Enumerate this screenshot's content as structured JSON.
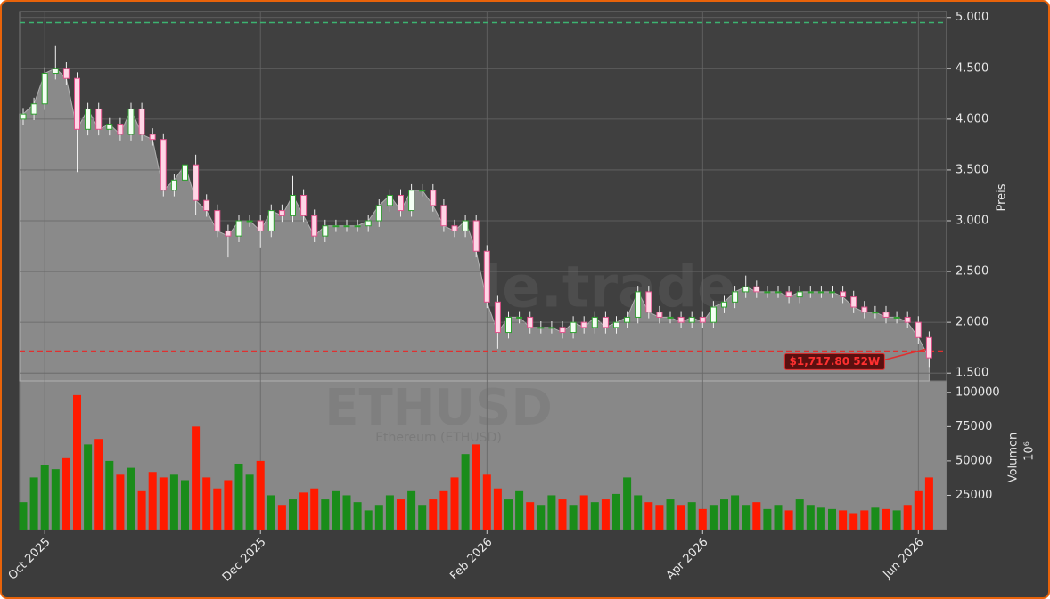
{
  "chart_data": {
    "type": "candlestick",
    "watermark": "forexsignale.trade",
    "symbol": "ETHUSD",
    "subtitle": "Ethereum (ETHUSD)",
    "categories": [
      null,
      null,
      "Oct 2025",
      null,
      null,
      null,
      null,
      null,
      null,
      null,
      null,
      null,
      null,
      null,
      null,
      null,
      null,
      null,
      null,
      null,
      null,
      null,
      "Dec 2025",
      null,
      null,
      null,
      null,
      null,
      null,
      null,
      null,
      null,
      null,
      null,
      null,
      null,
      null,
      null,
      null,
      null,
      null,
      null,
      null,
      "Feb 2026",
      null,
      null,
      null,
      null,
      null,
      null,
      null,
      null,
      null,
      null,
      null,
      null,
      null,
      null,
      null,
      null,
      null,
      null,
      null,
      "Apr 2026",
      null,
      null,
      null,
      null,
      null,
      null,
      null,
      null,
      null,
      null,
      null,
      null,
      null,
      null,
      null,
      null,
      null,
      null,
      null,
      "Jun 2026",
      null
    ],
    "open": [
      4000,
      4050,
      4150,
      4450,
      4500,
      4400,
      3900,
      4100,
      3900,
      3950,
      3850,
      4100,
      3850,
      3800,
      3300,
      3400,
      3550,
      3200,
      3100,
      2900,
      2850,
      3000,
      3000,
      2900,
      3100,
      3050,
      3250,
      3050,
      2850,
      2950,
      2950,
      2950,
      2950,
      3000,
      3150,
      3250,
      3100,
      3300,
      3300,
      3150,
      2950,
      2900,
      3000,
      2700,
      2200,
      1900,
      2050,
      2050,
      1950,
      1950,
      1950,
      1900,
      2000,
      1950,
      2050,
      1950,
      2000,
      2050,
      2300,
      2100,
      2050,
      2050,
      2000,
      2050,
      2000,
      2150,
      2200,
      2300,
      2350,
      2300,
      2300,
      2300,
      2250,
      2300,
      2300,
      2300,
      2300,
      2250,
      2150,
      2100,
      2100,
      2050,
      2050,
      2000,
      1850
    ],
    "high": [
      4110,
      4210,
      4510,
      4720,
      4560,
      4460,
      4160,
      4160,
      4010,
      4010,
      4160,
      4160,
      3910,
      3860,
      3460,
      3610,
      3650,
      3260,
      3160,
      2960,
      3060,
      3060,
      3060,
      3160,
      3160,
      3440,
      3310,
      3110,
      3010,
      3010,
      3010,
      3010,
      3060,
      3210,
      3310,
      3310,
      3360,
      3360,
      3360,
      3210,
      3010,
      3060,
      3060,
      2760,
      2260,
      2110,
      2110,
      2110,
      2010,
      2010,
      2010,
      2060,
      2060,
      2110,
      2110,
      2060,
      2110,
      2360,
      2360,
      2160,
      2110,
      2110,
      2110,
      2110,
      2210,
      2260,
      2360,
      2460,
      2410,
      2360,
      2360,
      2360,
      2360,
      2360,
      2360,
      2360,
      2360,
      2310,
      2210,
      2160,
      2160,
      2110,
      2110,
      2060,
      1910
    ],
    "low": [
      3940,
      3990,
      4090,
      4390,
      4340,
      3480,
      3840,
      3840,
      3840,
      3790,
      3790,
      3790,
      3740,
      3240,
      3240,
      3340,
      3060,
      3040,
      2840,
      2640,
      2790,
      2940,
      2730,
      2840,
      2990,
      2990,
      2990,
      2790,
      2790,
      2890,
      2890,
      2890,
      2890,
      2940,
      3090,
      3040,
      3040,
      3240,
      3090,
      2890,
      2840,
      2840,
      2640,
      2140,
      1740,
      1840,
      1990,
      1890,
      1890,
      1890,
      1840,
      1840,
      1890,
      1890,
      1890,
      1890,
      1940,
      1990,
      2040,
      1990,
      1990,
      1940,
      1940,
      1940,
      1940,
      2090,
      2140,
      2240,
      2240,
      2240,
      2240,
      2190,
      2190,
      2240,
      2240,
      2240,
      2190,
      2090,
      2040,
      2040,
      1990,
      1990,
      1940,
      1790,
      1560
    ],
    "close": [
      4050,
      4150,
      4450,
      4500,
      4400,
      3900,
      4100,
      3900,
      3950,
      3850,
      4100,
      3850,
      3800,
      3300,
      3400,
      3550,
      3200,
      3100,
      2900,
      2850,
      3000,
      3000,
      2900,
      3100,
      3050,
      3250,
      3050,
      2850,
      2950,
      2950,
      2950,
      2950,
      3000,
      3150,
      3250,
      3100,
      3300,
      3300,
      3150,
      2950,
      2900,
      3000,
      2700,
      2200,
      1900,
      2050,
      2050,
      1950,
      1950,
      1950,
      1900,
      2000,
      1950,
      2050,
      1950,
      2000,
      2050,
      2300,
      2100,
      2050,
      2050,
      2000,
      2050,
      2000,
      2150,
      2200,
      2300,
      2350,
      2300,
      2300,
      2300,
      2250,
      2300,
      2300,
      2300,
      2300,
      2250,
      2150,
      2100,
      2100,
      2050,
      2050,
      2000,
      1850,
      1650
    ],
    "volume": [
      20000,
      38000,
      47000,
      44000,
      52000,
      98000,
      62000,
      66000,
      50000,
      40000,
      45000,
      28000,
      42000,
      38000,
      40000,
      36000,
      75000,
      38000,
      30000,
      36000,
      48000,
      40000,
      50000,
      25000,
      18000,
      22000,
      27000,
      30000,
      22000,
      28000,
      25000,
      20000,
      14000,
      18000,
      25000,
      22000,
      28000,
      18000,
      22000,
      28000,
      38000,
      55000,
      62000,
      40000,
      30000,
      22000,
      28000,
      20000,
      18000,
      25000,
      22000,
      18000,
      25000,
      20000,
      22000,
      26000,
      38000,
      25000,
      20000,
      18000,
      22000,
      18000,
      20000,
      15000,
      18000,
      22000,
      25000,
      18000,
      20000,
      15000,
      18000,
      14000,
      22000,
      18000,
      16000,
      15000,
      14000,
      12000,
      14000,
      16000,
      15000,
      14000,
      18000,
      28000,
      38000
    ],
    "ylabel": "Preis",
    "ylim": [
      1423,
      5059
    ],
    "yticks": [
      {
        "value": 1500,
        "label": "1.500"
      },
      {
        "value": 2000,
        "label": "2.000"
      },
      {
        "value": 2500,
        "label": "2.500"
      },
      {
        "value": 3000,
        "label": "3.000"
      },
      {
        "value": 3500,
        "label": "3.500"
      },
      {
        "value": 4000,
        "label": "4.000"
      },
      {
        "value": 4500,
        "label": "4.500"
      },
      {
        "value": 5000,
        "label": "5.000"
      }
    ],
    "volume_label": "Volumen",
    "volume_scale": "10⁶",
    "volume_ylim": [
      0,
      108300
    ],
    "volume_yticks": [
      25000,
      50000,
      75000,
      100000
    ],
    "hlines": [
      {
        "value": 4950,
        "color": "#3cb371"
      }
    ],
    "annotation": {
      "text": "$1,717.80 52W",
      "value": 1717.8,
      "color": "#e03030"
    },
    "up_color": "#2ea02e",
    "down_color": "#e0508a",
    "volume_up_color": "#1a8c1a",
    "volume_down_color": "#ff1a00",
    "grid": true
  }
}
